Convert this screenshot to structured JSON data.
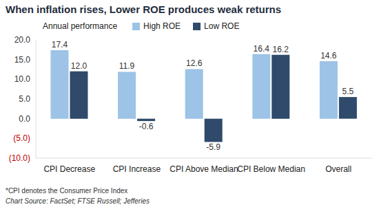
{
  "chart_data": {
    "type": "bar",
    "title": "When inflation rises, Lower ROE produces weak returns",
    "y_label": "Annual performance",
    "categories": [
      "CPI Decrease",
      "CPI Increase",
      "CPI Above Median",
      "CPI Below Median",
      "Overall"
    ],
    "series": [
      {
        "name": "High ROE",
        "color": "#9dc3e6",
        "values": [
          17.4,
          11.9,
          12.6,
          16.4,
          14.6
        ],
        "value_labels": [
          "17.4",
          "11.9",
          "12.6",
          "16.4",
          "14.6"
        ]
      },
      {
        "name": "Low ROE",
        "color": "#2f4a6b",
        "values": [
          12.0,
          -0.6,
          -5.9,
          16.2,
          5.5
        ],
        "value_labels": [
          "12.0",
          "-0.6",
          "-5.9",
          "16.2",
          "5.5"
        ]
      }
    ],
    "ylim": [
      -10,
      20
    ],
    "yticks": [
      {
        "value": 20,
        "label": "20.0"
      },
      {
        "value": 15,
        "label": "15.0"
      },
      {
        "value": 10,
        "label": "10.0"
      },
      {
        "value": 5,
        "label": "5.0"
      },
      {
        "value": 0,
        "label": "0.0"
      },
      {
        "value": -5,
        "label": "(5.0)"
      },
      {
        "value": -10,
        "label": "(10.0)"
      }
    ],
    "grid": false,
    "legend": "top",
    "data_labels": true,
    "annotations": [
      "*CPI denotes the Consumer Price Index",
      "Chart Source: FactSet; FTSE Russell; Jefferies"
    ]
  }
}
